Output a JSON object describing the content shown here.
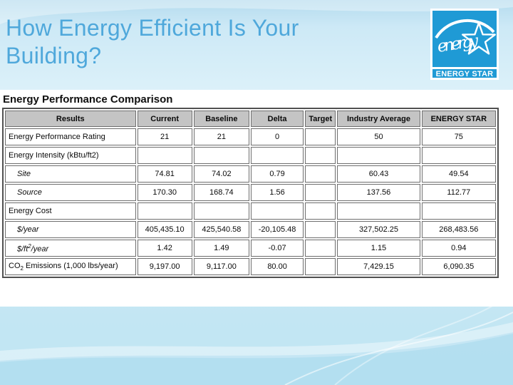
{
  "slide": {
    "title_line1": "How Energy Efficient Is Your",
    "title_line2": "Building?",
    "title_color": "#4fa8db"
  },
  "logo": {
    "script_text": "energy",
    "band_text": "ENERGY STAR",
    "blue": "#1f9ad5"
  },
  "table": {
    "title": "Energy Performance Comparison",
    "columns": [
      "Results",
      "Current",
      "Baseline",
      "Delta",
      "Target",
      "Industry Average",
      "ENERGY STAR"
    ],
    "rows": [
      {
        "label": [
          {
            "t": "Energy Performance Rating"
          }
        ],
        "indent": false,
        "italic": false,
        "values": [
          "21",
          "21",
          "0",
          "",
          "50",
          "75"
        ]
      },
      {
        "label": [
          {
            "t": "Energy Intensity (kBtu/ft2)"
          }
        ],
        "indent": false,
        "italic": false,
        "values": [
          "",
          "",
          "",
          "",
          "",
          ""
        ]
      },
      {
        "label": [
          {
            "t": "Site"
          }
        ],
        "indent": true,
        "italic": true,
        "values": [
          "74.81",
          "74.02",
          "0.79",
          "",
          "60.43",
          "49.54"
        ]
      },
      {
        "label": [
          {
            "t": "Source"
          }
        ],
        "indent": true,
        "italic": true,
        "values": [
          "170.30",
          "168.74",
          "1.56",
          "",
          "137.56",
          "112.77"
        ]
      },
      {
        "label": [
          {
            "t": "Energy Cost"
          }
        ],
        "indent": false,
        "italic": false,
        "values": [
          "",
          "",
          "",
          "",
          "",
          ""
        ]
      },
      {
        "label": [
          {
            "t": "$/year"
          }
        ],
        "indent": true,
        "italic": true,
        "values": [
          "405,435.10",
          "425,540.58",
          "-20,105.48",
          "",
          "327,502.25",
          "268,483.56"
        ]
      },
      {
        "label": [
          {
            "t": "$/ft"
          },
          {
            "t": "2",
            "sup": true
          },
          {
            "t": "/year"
          }
        ],
        "indent": true,
        "italic": true,
        "values": [
          "1.42",
          "1.49",
          "-0.07",
          "",
          "1.15",
          "0.94"
        ]
      },
      {
        "label": [
          {
            "t": "CO"
          },
          {
            "t": "2",
            "sub": true
          },
          {
            "t": " Emissions (1,000 lbs/year)"
          }
        ],
        "indent": false,
        "italic": false,
        "values": [
          "9,197.00",
          "9,117.00",
          "80.00",
          "",
          "7,429.15",
          "6,090.35"
        ]
      }
    ]
  }
}
